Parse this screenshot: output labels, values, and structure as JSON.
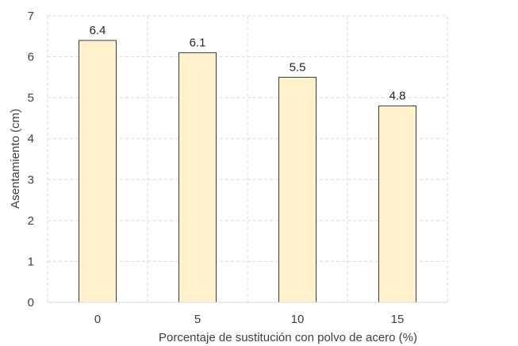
{
  "chart_data": {
    "type": "bar",
    "categories": [
      "0",
      "5",
      "10",
      "15"
    ],
    "values": [
      6.4,
      6.1,
      5.5,
      4.8
    ],
    "data_labels": [
      "6.4",
      "6.1",
      "5.5",
      "4.8"
    ],
    "xlabel": "Porcentaje de sustitución con polvo de acero (%)",
    "ylabel": "Asentamiento (cm)",
    "ylim": [
      0,
      7
    ],
    "yticks": [
      "0",
      "1",
      "2",
      "3",
      "4",
      "5",
      "6",
      "7"
    ],
    "grid": "dashed horizontal and vertical",
    "legend": "none",
    "colors": {
      "bar_fill": "#FFF2CC",
      "bar_stroke": "#3A3A3A",
      "grid": "#D9D9D9"
    }
  }
}
